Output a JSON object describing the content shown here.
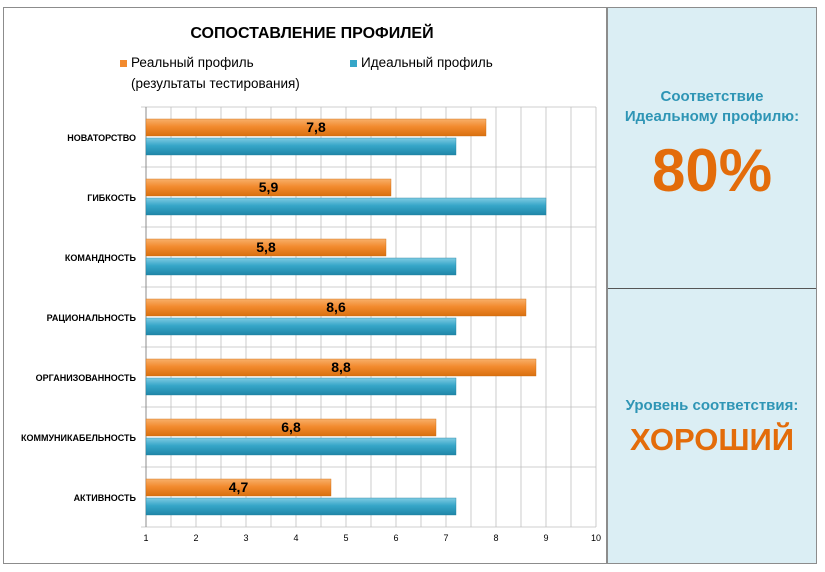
{
  "chart_data": {
    "type": "bar",
    "orientation": "horizontal",
    "title": "СОПОСТАВЛЕНИЕ ПРОФИЛЕЙ",
    "categories": [
      "НОВАТОРСТВО",
      "ГИБКОСТЬ",
      "КОМАНДНОСТЬ",
      "РАЦИОНАЛЬНОСТЬ",
      "ОРГАНИЗОВАННОСТЬ",
      "КОММУНИКАБЕЛЬНОСТЬ",
      "АКТИВНОСТЬ"
    ],
    "series": [
      {
        "name": "Реальный профиль",
        "name_line2": "(результаты тестирования)",
        "color": "#f28a2e",
        "values": [
          7.8,
          5.9,
          5.8,
          8.6,
          8.8,
          6.8,
          4.7
        ],
        "labels": [
          "7,8",
          "5,9",
          "5,8",
          "8,6",
          "8,8",
          "6,8",
          "4,7"
        ]
      },
      {
        "name": "Идеальный профиль",
        "color": "#36a6c8",
        "values": [
          7.2,
          9.0,
          7.2,
          7.2,
          7.2,
          7.2,
          7.2
        ]
      }
    ],
    "xlim": [
      1,
      10
    ],
    "xticks": [
      "1",
      "2",
      "3",
      "4",
      "5",
      "6",
      "7",
      "8",
      "9",
      "10"
    ],
    "grid": true,
    "legend": "top"
  },
  "summary": {
    "match_label": "Соответствие Идеальному профилю:",
    "match_value": "80%",
    "level_label": "Уровень соответствия:",
    "level_value": "ХОРОШИЙ"
  }
}
